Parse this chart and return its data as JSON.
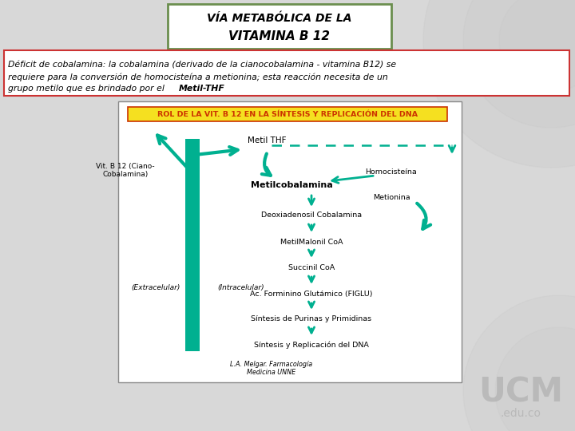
{
  "title_line1": "VÍA METABÓLICA DE LA",
  "title_line2": "VITAMINA B 12",
  "title_box_color": "#6b8e4e",
  "background_color": "#d8d8d8",
  "text_box_color": "#cc3333",
  "body_text_line1": "Déficit de cobalamina: la cobalamina (derivado de la cianocobalamina - vitamina B12) se",
  "body_text_line2": "requiere para la conversión de homocisteína a metionina; esta reacción necesita de un",
  "body_text_line3_plain": "grupo metilo que es brindado por el ",
  "body_text_bold": "Metil-THF",
  "inner_box_title": "ROL DE LA VIT. B 12 EN LA SÍNTESIS Y REPLICACIÓN DEL DNA",
  "inner_box_title_bg": "#f5e020",
  "inner_box_title_color": "#cc3300",
  "teal_color": "#00b090",
  "vit_b12_label": "Vit. B 12 (Ciano-\nCobalamina)",
  "metil_thf_label": "Metil THF",
  "metilcobalamina_label": "Metilcobalamina",
  "homocisteina_label": "Homocisteína",
  "metionina_label": "Metionina",
  "deoxiadenosil_label": "Deoxiadenosil Cobalamina",
  "metilmalonil_label": "MetilMalonil CoA",
  "succinil_label": "Succinil CoA",
  "figlu_label": "Ac. Forminino Glutámico (FIGLU)",
  "sintesis_purinas_label": "Síntesis de Purinas y Primidinas",
  "sintesis_dna_label": "Síntesis y Replicación del DNA",
  "extracelular_label": "(Extracelular)",
  "intracelular_label": "(Intracelular)",
  "footer_text": "L.A. Melgar. Farmacología\nMedicina UNNE",
  "ucm_color": "#aaaaaa"
}
